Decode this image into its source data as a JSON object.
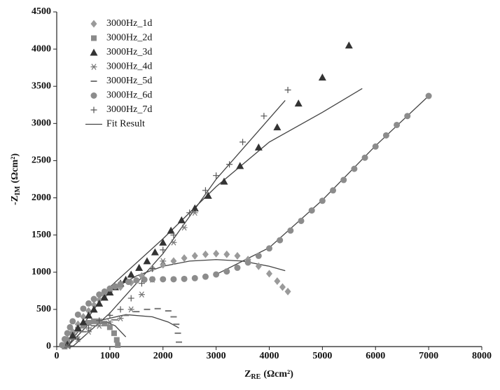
{
  "chart_data": {
    "type": "scatter",
    "x_label": [
      "Z",
      "RE",
      "(Ωcm²)"
    ],
    "y_label": [
      "-Z",
      "IM",
      "(Ωcm²)"
    ],
    "xlim": [
      0,
      8000
    ],
    "xticks": [
      0,
      1000,
      2000,
      3000,
      4000,
      5000,
      6000,
      7000,
      8000
    ],
    "ylim": [
      0,
      4500
    ],
    "yticks": [
      0,
      500,
      1000,
      1500,
      2000,
      2500,
      3000,
      3500,
      4000,
      4500
    ],
    "legend": "upper-left",
    "series": [
      {
        "name": "3000Hz_1d",
        "color": "#9a9a9a",
        "marker": "diamond",
        "x": [
          150,
          200,
          300,
          400,
          500,
          600,
          700,
          800,
          900,
          1000,
          1200,
          1400,
          1600,
          1800,
          2000,
          2200,
          2400,
          2600,
          2800,
          3000,
          3200,
          3400,
          3600,
          3800,
          4000,
          4150,
          4250,
          4350
        ],
        "values": [
          20,
          100,
          200,
          300,
          400,
          480,
          560,
          630,
          690,
          740,
          800,
          860,
          950,
          1050,
          1100,
          1150,
          1190,
          1220,
          1240,
          1250,
          1240,
          1220,
          1170,
          1080,
          980,
          880,
          800,
          740
        ]
      },
      {
        "name": "3000Hz_2d",
        "color": "#8a8a8a",
        "marker": "square",
        "x": [
          150,
          200,
          300,
          400,
          500,
          600,
          700,
          800,
          900,
          1000,
          1080,
          1130,
          1150
        ],
        "values": [
          0,
          80,
          160,
          230,
          280,
          320,
          340,
          340,
          310,
          260,
          180,
          90,
          20
        ]
      },
      {
        "name": "3000Hz_3d",
        "color": "#333333",
        "marker": "triangle",
        "x": [
          200,
          300,
          400,
          500,
          600,
          700,
          800,
          900,
          1000,
          1100,
          1200,
          1300,
          1400,
          1550,
          1700,
          1850,
          2000,
          2150,
          2350,
          2600,
          2850,
          3150,
          3450,
          3800,
          4150,
          4550,
          5000,
          5500
        ],
        "values": [
          30,
          150,
          250,
          330,
          420,
          500,
          580,
          660,
          730,
          800,
          850,
          900,
          970,
          1060,
          1150,
          1270,
          1400,
          1560,
          1700,
          1860,
          2030,
          2220,
          2430,
          2680,
          2950,
          3270,
          3620,
          4050
        ]
      },
      {
        "name": "3000Hz_4d",
        "color": "#777777",
        "marker": "asterisk",
        "x": [
          200,
          400,
          600,
          800,
          1000,
          1200,
          1400,
          1600,
          1800,
          2000,
          2200,
          2400,
          2600
        ],
        "values": [
          10,
          100,
          200,
          280,
          330,
          380,
          500,
          700,
          900,
          1150,
          1400,
          1600,
          1800
        ]
      },
      {
        "name": "3000Hz_5d",
        "color": "#777777",
        "marker": "dash",
        "x": [
          200,
          300,
          500,
          700,
          900,
          1100,
          1300,
          1500,
          1700,
          1900,
          2100,
          2200,
          2250,
          2280,
          2300
        ],
        "values": [
          0,
          100,
          200,
          280,
          320,
          360,
          420,
          470,
          500,
          510,
          480,
          400,
          300,
          180,
          60
        ]
      },
      {
        "name": "3000Hz_6d",
        "color": "#8c8c8c",
        "marker": "circle",
        "x": [
          100,
          150,
          200,
          250,
          300,
          400,
          500,
          600,
          700,
          800,
          900,
          1000,
          1100,
          1200,
          1350,
          1500,
          1650,
          1800,
          2000,
          2200,
          2400,
          2600,
          2800,
          3000,
          3200,
          3400,
          3600,
          3800,
          4000,
          4200,
          4400,
          4600,
          4800,
          5000,
          5200,
          5400,
          5600,
          5800,
          6000,
          6200,
          6400,
          6600,
          7000
        ],
        "values": [
          20,
          100,
          180,
          260,
          340,
          430,
          510,
          580,
          640,
          700,
          740,
          780,
          810,
          840,
          870,
          890,
          900,
          905,
          905,
          905,
          910,
          920,
          940,
          970,
          1010,
          1060,
          1130,
          1220,
          1320,
          1430,
          1560,
          1690,
          1830,
          1960,
          2100,
          2240,
          2390,
          2540,
          2690,
          2840,
          2980,
          3100,
          3370
        ]
      },
      {
        "name": "3000Hz_7d",
        "color": "#555555",
        "marker": "plus",
        "x": [
          250,
          400,
          600,
          800,
          1000,
          1200,
          1400,
          1600,
          1800,
          2000,
          2200,
          2500,
          2800,
          3000,
          3250,
          3500,
          3900,
          4350
        ],
        "values": [
          10,
          100,
          250,
          350,
          420,
          500,
          650,
          850,
          1050,
          1300,
          1500,
          1800,
          2100,
          2300,
          2450,
          2750,
          3100,
          3450
        ]
      }
    ],
    "fit": {
      "name": "Fit Result",
      "color": "#444444",
      "curves": [
        {
          "x": [
            200,
            1000,
            2000,
            3000,
            4000,
            5000,
            5750
          ],
          "values": [
            0,
            800,
            1450,
            2150,
            2750,
            3150,
            3470
          ]
        },
        {
          "x": [
            300,
            1000,
            2000,
            3000,
            4300
          ],
          "values": [
            0,
            450,
            1250,
            2250,
            3310
          ]
        },
        {
          "x": [
            1000,
            1500,
            2000,
            2500,
            3000,
            3500,
            4000,
            4300
          ],
          "values": [
            750,
            950,
            1080,
            1150,
            1170,
            1150,
            1080,
            1020
          ]
        },
        {
          "x": [
            3000,
            4000,
            5000,
            6000,
            7000
          ],
          "values": [
            970,
            1330,
            1970,
            2700,
            3370
          ]
        },
        {
          "x": [
            800,
            1300,
            1800,
            2100,
            2300
          ],
          "values": [
            350,
            430,
            400,
            330,
            250
          ]
        },
        {
          "x": [
            200,
            600,
            900,
            1100,
            1300
          ],
          "values": [
            0,
            300,
            340,
            280,
            130
          ]
        }
      ]
    }
  }
}
